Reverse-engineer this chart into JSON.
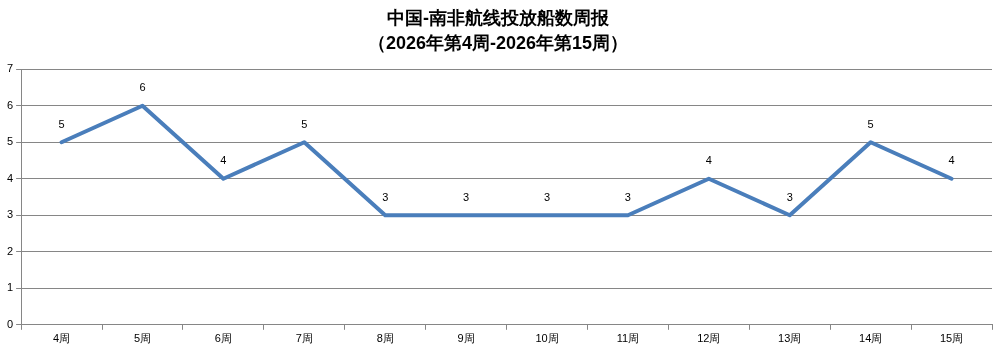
{
  "chart_data": {
    "type": "line",
    "title": "中国-南非航线投放船数周报",
    "subtitle": "（2026年第4周-2026年第15周）",
    "categories": [
      "4周",
      "5周",
      "6周",
      "7周",
      "8周",
      "9周",
      "10周",
      "11周",
      "12周",
      "13周",
      "14周",
      "15周"
    ],
    "series": [
      {
        "color": "#4a7ebb",
        "values": [
          5,
          6,
          4,
          5,
          3,
          3,
          3,
          3,
          4,
          3,
          5,
          4
        ]
      }
    ],
    "ylim": [
      0,
      7
    ],
    "yticks": [
      0,
      1,
      2,
      3,
      4,
      5,
      6,
      7
    ],
    "grid": "y",
    "legend": false,
    "marker": "none",
    "line_style": "solid",
    "data_labels": true
  }
}
